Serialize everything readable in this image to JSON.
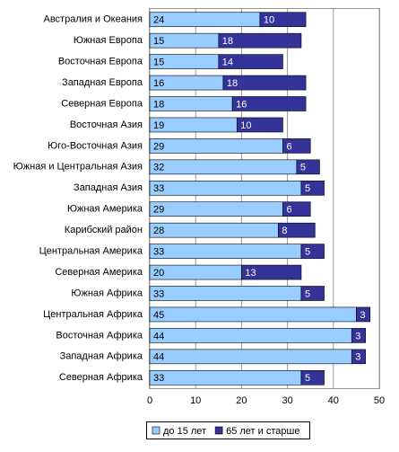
{
  "chart_data": {
    "type": "stacked-barh",
    "categories": [
      "Австралия и Океания",
      "Южная Европа",
      "Восточная Европа",
      "Западная Европа",
      "Северная Европа",
      "Восточная Азия",
      "Юго-Восточная Азия",
      "Южная и Центральная Азия",
      "Западная Азия",
      "Южная Америка",
      "Карибский район",
      "Центральная Америка",
      "Северная Америка",
      "Южная Африка",
      "Центральная Африка",
      "Восточная Африка",
      "Западная Африка",
      "Северная Африка"
    ],
    "series": [
      {
        "name": "до 15 лет",
        "color": "#99ccff",
        "values": [
          24,
          15,
          15,
          16,
          18,
          19,
          29,
          32,
          33,
          29,
          28,
          33,
          20,
          33,
          45,
          44,
          44,
          33
        ]
      },
      {
        "name": "65 лет и старше",
        "color": "#333399",
        "values": [
          10,
          18,
          14,
          18,
          16,
          10,
          6,
          5,
          5,
          6,
          8,
          5,
          13,
          5,
          3,
          3,
          3,
          5
        ]
      }
    ],
    "xlim": [
      0,
      50
    ],
    "xticks": [
      0,
      10,
      20,
      30,
      40,
      50
    ],
    "grid": true,
    "legend": "bottom"
  }
}
